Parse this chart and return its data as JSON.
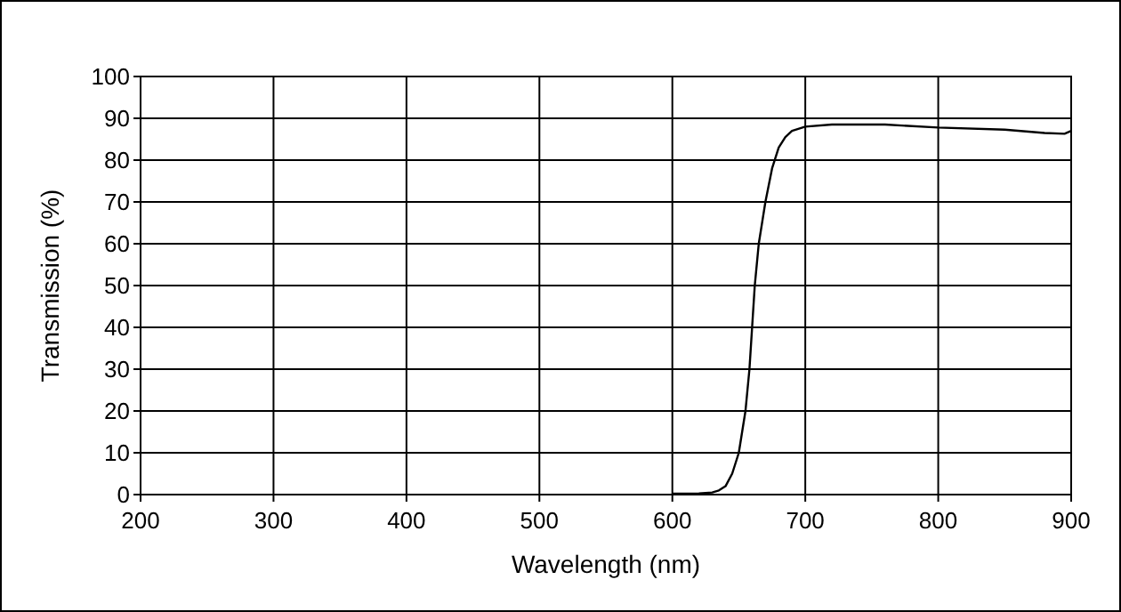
{
  "chart_data": {
    "type": "line",
    "xlabel": "Wavelength (nm)",
    "ylabel": "Transmission (%)",
    "xlim": [
      200,
      900
    ],
    "xticks": [
      200,
      300,
      400,
      500,
      600,
      700,
      800,
      900
    ],
    "ylim": [
      0,
      100
    ],
    "yticks": [
      0,
      10,
      20,
      30,
      40,
      50,
      60,
      70,
      80,
      90,
      100
    ],
    "grid": true,
    "marker": "none",
    "line_style": "solid",
    "series": [
      {
        "color": "#000000",
        "x": [
          600,
          620,
          630,
          635,
          640,
          645,
          650,
          655,
          658,
          660,
          662,
          665,
          670,
          675,
          680,
          685,
          690,
          700,
          720,
          760,
          800,
          850,
          880,
          895,
          900
        ],
        "values": [
          0.2,
          0.3,
          0.5,
          1,
          2,
          5,
          10,
          20,
          30,
          40,
          50,
          60,
          70,
          78,
          83,
          85.5,
          87,
          88,
          88.5,
          88.5,
          87.8,
          87.3,
          86.5,
          86.3,
          87
        ]
      }
    ]
  }
}
